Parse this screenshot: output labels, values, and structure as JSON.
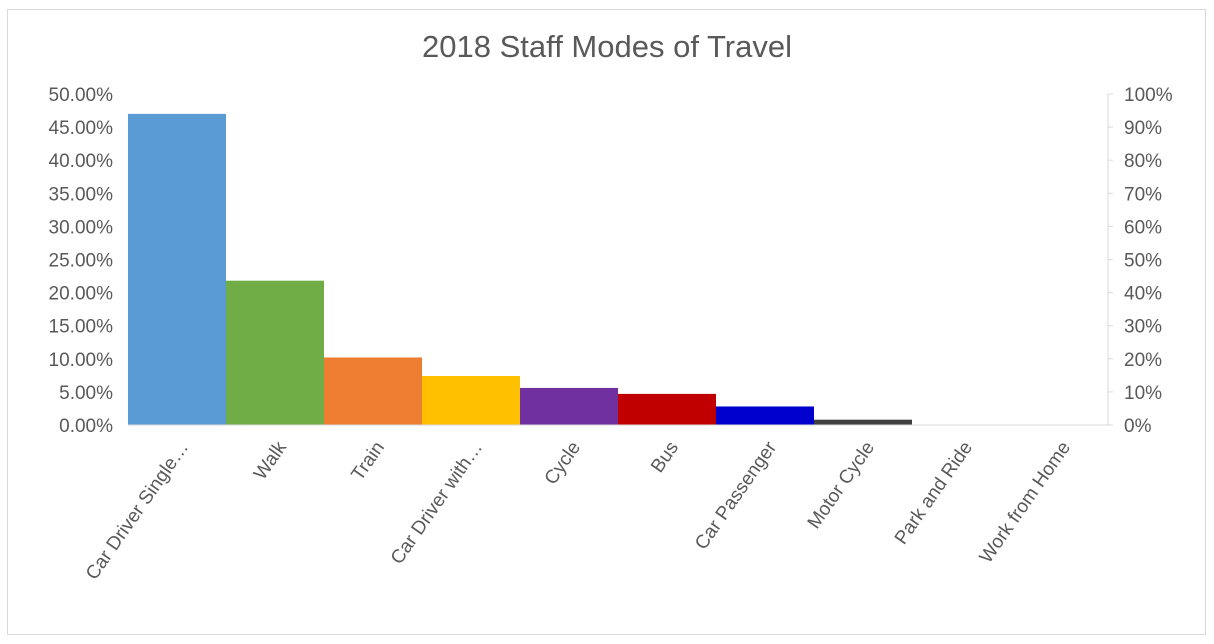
{
  "chart_data": {
    "type": "bar",
    "title": "2018 Staff Modes of Travel",
    "categories": [
      "Car Driver Single…",
      "Walk",
      "Train",
      "Car Driver with…",
      "Cycle",
      "Bus",
      "Car Passenger",
      "Motor Cycle",
      "Park and Ride",
      "Work from Home"
    ],
    "values": [
      47.0,
      21.8,
      10.2,
      7.4,
      5.6,
      4.7,
      2.8,
      0.8,
      0.0,
      0.0
    ],
    "colors": [
      "#5b9bd5",
      "#70ad47",
      "#ed7d31",
      "#ffc000",
      "#7030a0",
      "#c00000",
      "#0000cc",
      "#404040",
      "#a5a5a5",
      "#a5a5a5"
    ],
    "ylim": [
      0,
      50
    ],
    "y2lim": [
      0,
      100
    ],
    "y_ticks": [
      "0.00%",
      "5.00%",
      "10.00%",
      "15.00%",
      "20.00%",
      "25.00%",
      "30.00%",
      "35.00%",
      "40.00%",
      "45.00%",
      "50.00%"
    ],
    "y2_ticks": [
      "0%",
      "10%",
      "20%",
      "30%",
      "40%",
      "50%",
      "60%",
      "70%",
      "80%",
      "90%",
      "100%"
    ],
    "grid": false,
    "legend": "none"
  }
}
